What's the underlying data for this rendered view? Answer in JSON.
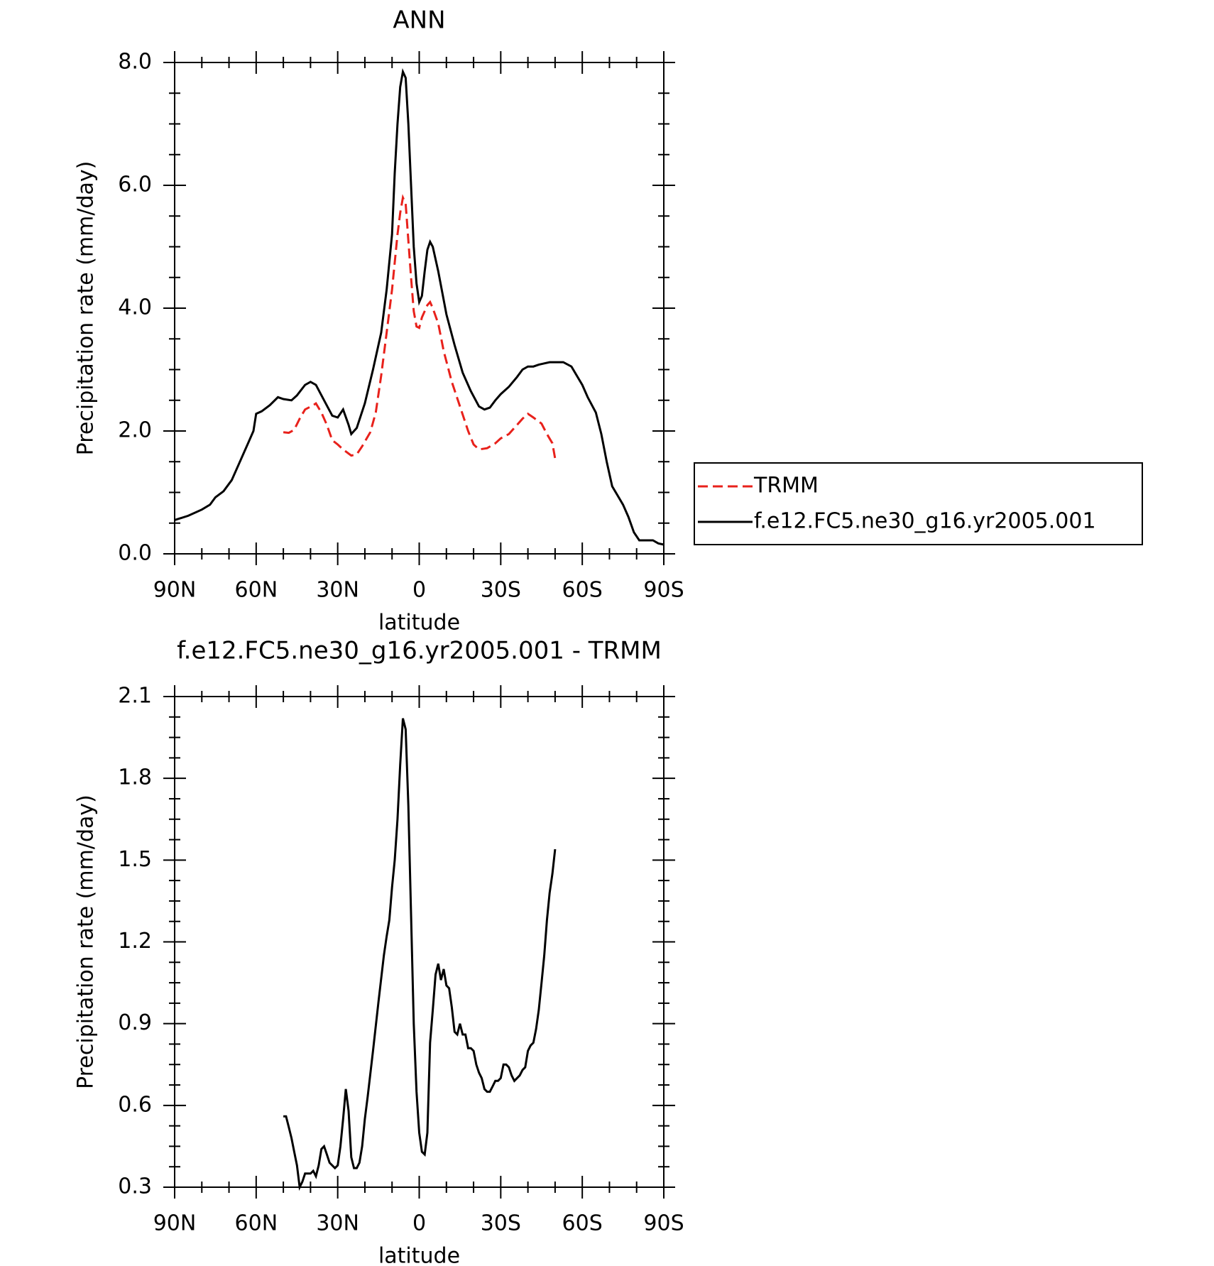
{
  "chart_data": [
    {
      "type": "line",
      "title": "ANN",
      "xlabel": "latitude",
      "ylabel": "Precipitation rate (mm/day)",
      "xlim": [
        90,
        -90
      ],
      "xticks": [
        {
          "value": 90,
          "label": "90N"
        },
        {
          "value": 60,
          "label": "60N"
        },
        {
          "value": 30,
          "label": "30N"
        },
        0,
        {
          "value": -30,
          "label": "30S"
        },
        {
          "value": -60,
          "label": "60S"
        },
        {
          "value": -90,
          "label": "90S"
        }
      ],
      "ylim": [
        0,
        8
      ],
      "yticks": [
        {
          "value": 0,
          "label": "0.0"
        },
        {
          "value": 2,
          "label": "2.0"
        },
        {
          "value": 4,
          "label": "4.0"
        },
        {
          "value": 6,
          "label": "6.0"
        },
        {
          "value": 8,
          "label": "8.0"
        }
      ],
      "legend": "right",
      "series": [
        {
          "name": "TRMM",
          "color": "#e8211b",
          "dash": true,
          "x": [
            50,
            48,
            46,
            44,
            42,
            39,
            38,
            36,
            34,
            32,
            30,
            28,
            25,
            23,
            21,
            18,
            16,
            14,
            12,
            10,
            8,
            7,
            6,
            5,
            4,
            3,
            2,
            1,
            0,
            -1,
            -3,
            -4,
            -5,
            -7,
            -9,
            -12,
            -15,
            -18,
            -20,
            -22,
            -25,
            -28,
            -30,
            -33,
            -36,
            -38,
            -40,
            -42,
            -45,
            -47,
            -49,
            -50
          ],
          "values": [
            1.98,
            1.97,
            2.02,
            2.2,
            2.35,
            2.42,
            2.45,
            2.3,
            2.1,
            1.85,
            1.78,
            1.7,
            1.6,
            1.62,
            1.75,
            1.98,
            2.3,
            2.9,
            3.6,
            4.3,
            5.2,
            5.55,
            5.8,
            5.7,
            5.1,
            4.5,
            3.95,
            3.7,
            3.68,
            3.85,
            4.05,
            4.1,
            4.0,
            3.75,
            3.3,
            2.8,
            2.4,
            2.0,
            1.78,
            1.7,
            1.72,
            1.8,
            1.88,
            1.95,
            2.1,
            2.2,
            2.28,
            2.22,
            2.12,
            1.95,
            1.8,
            1.55
          ]
        },
        {
          "name": "f.e12.FC5.ne30_g16.yr2005.001",
          "color": "#000000",
          "dash": false,
          "x": [
            90,
            85,
            80,
            77,
            75,
            72,
            69,
            66,
            63,
            61,
            60,
            58,
            55,
            52,
            50,
            47,
            45,
            42,
            40,
            38,
            35,
            32,
            30,
            28,
            26,
            25,
            23,
            20,
            17,
            14,
            12,
            10,
            9,
            8,
            7,
            6,
            5,
            4,
            3,
            2,
            1,
            0,
            -1,
            -2,
            -3,
            -4,
            -5,
            -7,
            -10,
            -13,
            -16,
            -19,
            -22,
            -24,
            -26,
            -28,
            -30,
            -33,
            -36,
            -38,
            -40,
            -42,
            -44,
            -46,
            -48,
            -50,
            -53,
            -56,
            -58,
            -60,
            -62,
            -65,
            -67,
            -69,
            -71,
            -73,
            -75,
            -77,
            -79,
            -81,
            -84,
            -86,
            -88,
            -90
          ],
          "values": [
            0.55,
            0.62,
            0.72,
            0.8,
            0.92,
            1.02,
            1.2,
            1.5,
            1.8,
            2.0,
            2.28,
            2.32,
            2.42,
            2.55,
            2.52,
            2.5,
            2.58,
            2.75,
            2.8,
            2.75,
            2.5,
            2.25,
            2.22,
            2.35,
            2.1,
            1.95,
            2.05,
            2.45,
            3.0,
            3.6,
            4.3,
            5.2,
            6.2,
            7.0,
            7.6,
            7.85,
            7.75,
            7.0,
            6.0,
            5.0,
            4.4,
            4.1,
            4.2,
            4.6,
            4.95,
            5.08,
            5.0,
            4.6,
            3.9,
            3.4,
            2.95,
            2.65,
            2.4,
            2.35,
            2.38,
            2.5,
            2.6,
            2.72,
            2.88,
            3.0,
            3.05,
            3.05,
            3.08,
            3.1,
            3.12,
            3.12,
            3.12,
            3.05,
            2.9,
            2.75,
            2.55,
            2.3,
            1.95,
            1.5,
            1.1,
            0.95,
            0.8,
            0.6,
            0.35,
            0.22,
            0.22,
            0.22,
            0.17,
            0.15
          ]
        }
      ]
    },
    {
      "type": "line",
      "title": "f.e12.FC5.ne30_g16.yr2005.001 - TRMM",
      "xlabel": "latitude",
      "ylabel": "Precipitation rate (mm/day)",
      "xlim": [
        90,
        -90
      ],
      "xticks": [
        {
          "value": 90,
          "label": "90N"
        },
        {
          "value": 60,
          "label": "60N"
        },
        {
          "value": 30,
          "label": "30N"
        },
        0,
        {
          "value": -30,
          "label": "30S"
        },
        {
          "value": -60,
          "label": "60S"
        },
        {
          "value": -90,
          "label": "90S"
        }
      ],
      "ylim": [
        0.3,
        2.1
      ],
      "yticks": [
        0.3,
        0.6,
        0.9,
        1.2,
        1.5,
        1.8,
        2.1
      ],
      "series": [
        {
          "color": "#000000",
          "dash": false,
          "x": [
            50,
            49,
            48,
            47,
            46,
            45,
            44,
            43,
            42,
            41,
            40,
            39,
            38,
            37,
            36,
            35,
            34,
            33,
            32,
            31,
            30,
            29,
            28,
            27,
            26,
            25,
            24,
            23,
            22,
            21,
            20,
            19,
            17,
            15,
            13,
            12,
            11,
            10,
            9,
            8,
            7,
            6,
            5,
            4,
            3,
            2,
            1,
            0,
            -1,
            -2,
            -3,
            -4,
            -5,
            -6,
            -7,
            -8,
            -9,
            -10,
            -11,
            -12,
            -13,
            -14,
            -15,
            -16,
            -17,
            -18,
            -19,
            -20,
            -21,
            -22,
            -23,
            -24,
            -25,
            -26,
            -27,
            -28,
            -29,
            -30,
            -31,
            -32,
            -33,
            -34,
            -35,
            -36,
            -37,
            -38,
            -39,
            -40,
            -41,
            -42,
            -43,
            -44,
            -45,
            -46,
            -47,
            -48,
            -49,
            -50
          ],
          "values": [
            0.56,
            0.56,
            0.52,
            0.48,
            0.43,
            0.38,
            0.3,
            0.32,
            0.35,
            0.35,
            0.35,
            0.36,
            0.34,
            0.38,
            0.44,
            0.45,
            0.42,
            0.39,
            0.38,
            0.37,
            0.38,
            0.45,
            0.55,
            0.66,
            0.58,
            0.41,
            0.37,
            0.37,
            0.39,
            0.45,
            0.55,
            0.63,
            0.8,
            0.98,
            1.15,
            1.22,
            1.28,
            1.4,
            1.5,
            1.65,
            1.85,
            2.02,
            1.98,
            1.7,
            1.3,
            0.9,
            0.65,
            0.5,
            0.43,
            0.42,
            0.5,
            0.83,
            0.95,
            1.08,
            1.12,
            1.06,
            1.1,
            1.04,
            1.03,
            0.96,
            0.87,
            0.86,
            0.9,
            0.86,
            0.86,
            0.81,
            0.81,
            0.8,
            0.75,
            0.72,
            0.7,
            0.66,
            0.65,
            0.65,
            0.67,
            0.69,
            0.69,
            0.7,
            0.75,
            0.75,
            0.74,
            0.71,
            0.69,
            0.7,
            0.71,
            0.73,
            0.74,
            0.8,
            0.82,
            0.83,
            0.88,
            0.95,
            1.05,
            1.15,
            1.28,
            1.38,
            1.45,
            1.54
          ]
        }
      ]
    }
  ]
}
